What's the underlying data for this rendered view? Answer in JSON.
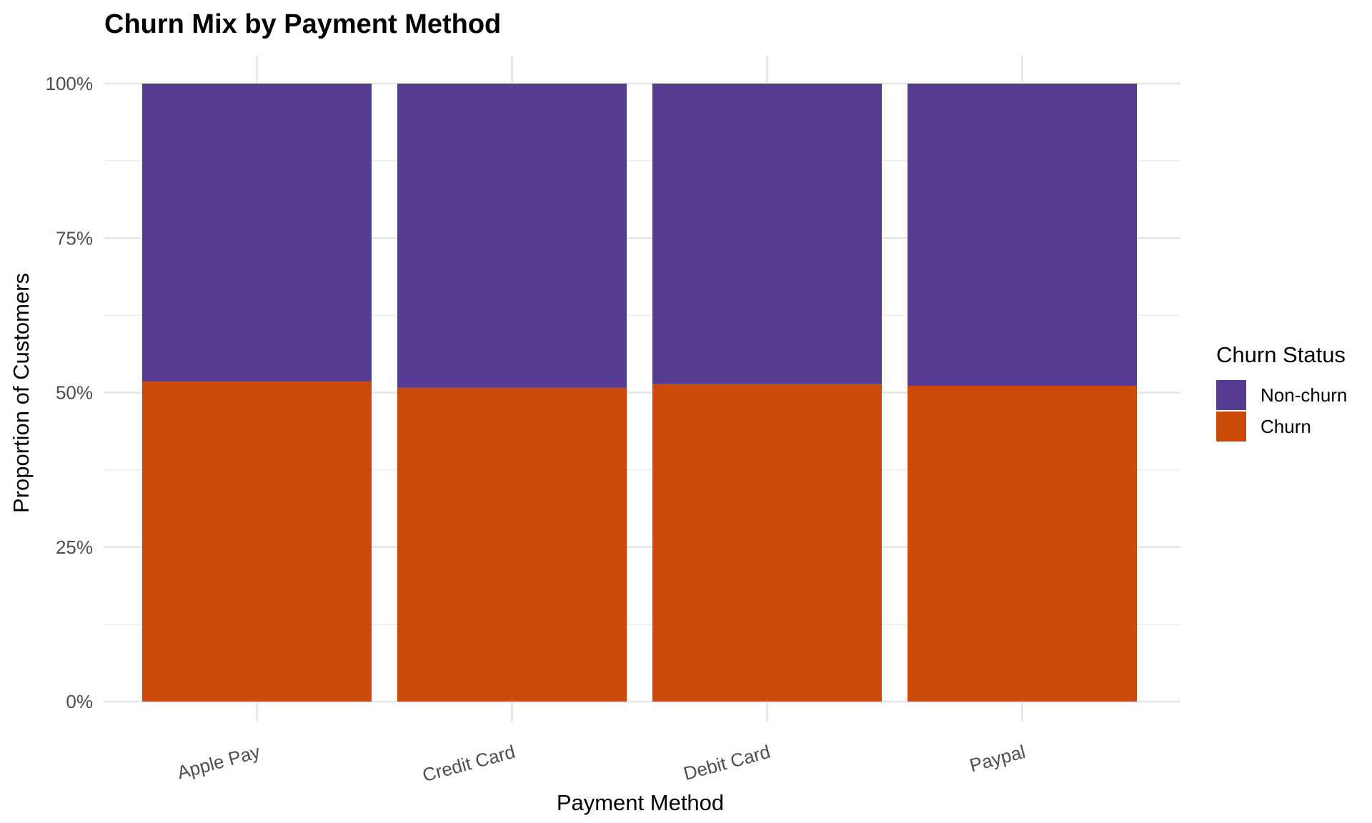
{
  "chart_data": {
    "type": "bar",
    "stacked": "percent",
    "title": "Churn Mix by Payment Method",
    "xlabel": "Payment Method",
    "ylabel": "Proportion of Customers",
    "categories": [
      "Apple Pay",
      "Credit Card",
      "Debit Card",
      "Paypal"
    ],
    "ylim": [
      0,
      1
    ],
    "yticks": [
      "0%",
      "25%",
      "50%",
      "75%",
      "100%"
    ],
    "grid": true,
    "legend": {
      "title": "Churn Status",
      "position": "right"
    },
    "series": [
      {
        "name": "Churn",
        "color": "#CC4A09",
        "values": [
          0.518,
          0.508,
          0.514,
          0.511
        ]
      },
      {
        "name": "Non-churn",
        "color": "#553C92",
        "values": [
          0.482,
          0.492,
          0.486,
          0.489
        ]
      }
    ]
  }
}
